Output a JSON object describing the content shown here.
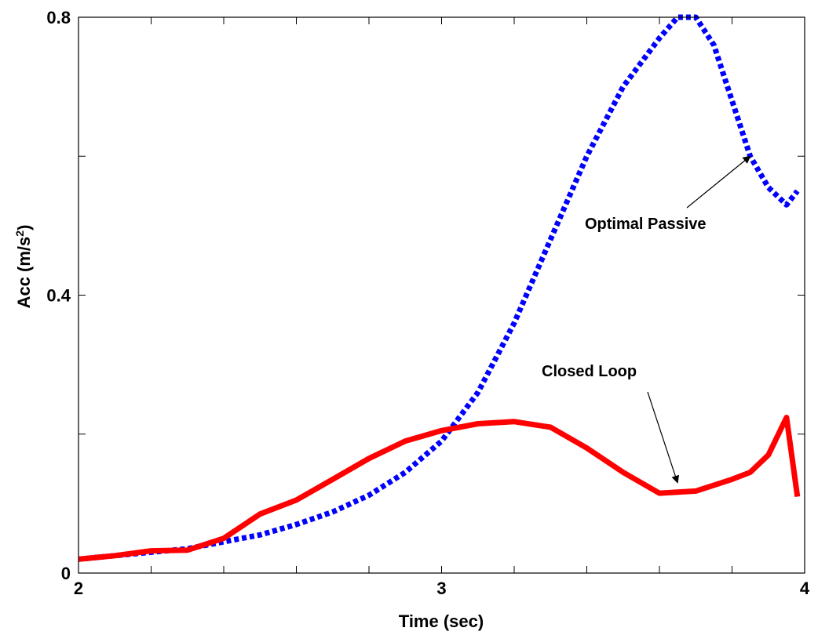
{
  "chart_data": {
    "type": "line",
    "title": "",
    "xlabel": "Time (sec)",
    "ylabel_main": "Acc (m/s",
    "ylabel_sup": "2",
    "ylabel_close": ")",
    "xlim": [
      2,
      4
    ],
    "ylim": [
      0,
      0.8
    ],
    "xticks": [
      2,
      3,
      4
    ],
    "xtick_labels": [
      "2",
      "3",
      "4"
    ],
    "yticks": [
      0,
      0.4,
      0.8
    ],
    "ytick_labels": [
      "0",
      "0.4",
      "0.8"
    ],
    "grid": false,
    "series": [
      {
        "key": "optimal",
        "name": "Optimal Passive",
        "color": "#0000ff",
        "style": "dotted",
        "x": [
          2.0,
          2.1,
          2.2,
          2.3,
          2.4,
          2.5,
          2.6,
          2.7,
          2.8,
          2.9,
          3.0,
          3.1,
          3.2,
          3.3,
          3.4,
          3.5,
          3.6,
          3.65,
          3.7,
          3.75,
          3.8,
          3.85,
          3.9,
          3.95,
          3.98
        ],
        "values": [
          0.02,
          0.025,
          0.03,
          0.035,
          0.045,
          0.055,
          0.07,
          0.088,
          0.112,
          0.145,
          0.19,
          0.26,
          0.36,
          0.48,
          0.6,
          0.7,
          0.77,
          0.8,
          0.8,
          0.76,
          0.68,
          0.6,
          0.555,
          0.53,
          0.55
        ]
      },
      {
        "key": "closed",
        "name": "Closed Loop",
        "color": "#ff0000",
        "style": "solid",
        "x": [
          2.0,
          2.1,
          2.2,
          2.3,
          2.4,
          2.5,
          2.6,
          2.7,
          2.8,
          2.9,
          3.0,
          3.1,
          3.2,
          3.3,
          3.4,
          3.5,
          3.6,
          3.7,
          3.8,
          3.85,
          3.9,
          3.95,
          3.98
        ],
        "values": [
          0.02,
          0.025,
          0.032,
          0.033,
          0.05,
          0.085,
          0.105,
          0.135,
          0.165,
          0.19,
          0.205,
          0.215,
          0.218,
          0.21,
          0.18,
          0.145,
          0.115,
          0.118,
          0.135,
          0.145,
          0.17,
          0.224,
          0.11
        ]
      }
    ],
    "annotations": [
      {
        "key": "optimal",
        "text": "Optimal Passive"
      },
      {
        "key": "closed",
        "text": "Closed Loop"
      }
    ]
  }
}
